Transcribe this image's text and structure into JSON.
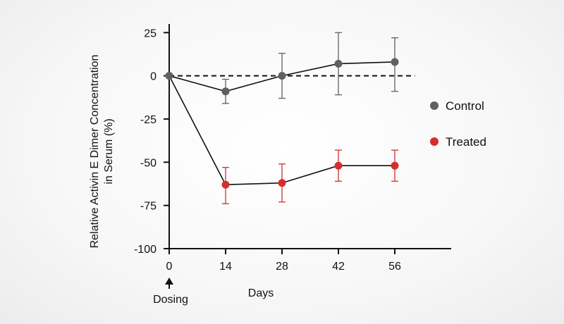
{
  "chart_data": {
    "type": "line",
    "title": "",
    "xlabel": "Days",
    "ylabel": "Relative Activin E Dimer Concentration in Serum (%)",
    "ylabel_lines": [
      "Relative Activin E Dimer Concentration",
      "in Serum (%)"
    ],
    "x": [
      0,
      14,
      28,
      42,
      56
    ],
    "x_ticks": [
      0,
      14,
      28,
      42,
      56
    ],
    "x_tick_labels": [
      "0",
      "14",
      "28",
      "42",
      "56"
    ],
    "y_ticks": [
      25,
      0,
      -25,
      -50,
      -75,
      -100
    ],
    "y_tick_labels": [
      "25",
      "0",
      "-25",
      "-50",
      "-75",
      "-100"
    ],
    "xlim": [
      0,
      70
    ],
    "ylim": [
      -100,
      30
    ],
    "reference_line": 0,
    "annotation": "Dosing",
    "annotation_x": 0,
    "legend_position": "right",
    "series": [
      {
        "name": "Control",
        "color": "#606060",
        "values": [
          0,
          -9,
          0,
          7,
          8
        ],
        "err_low": [
          0,
          7,
          13,
          18,
          17
        ],
        "err_high": [
          0,
          7,
          13,
          18,
          14
        ]
      },
      {
        "name": "Treated",
        "color": "#d32f2f",
        "values": [
          0,
          -63,
          -62,
          -52,
          -52
        ],
        "err_low": [
          0,
          11,
          11,
          9,
          9
        ],
        "err_high": [
          0,
          10,
          11,
          9,
          9
        ]
      }
    ]
  }
}
